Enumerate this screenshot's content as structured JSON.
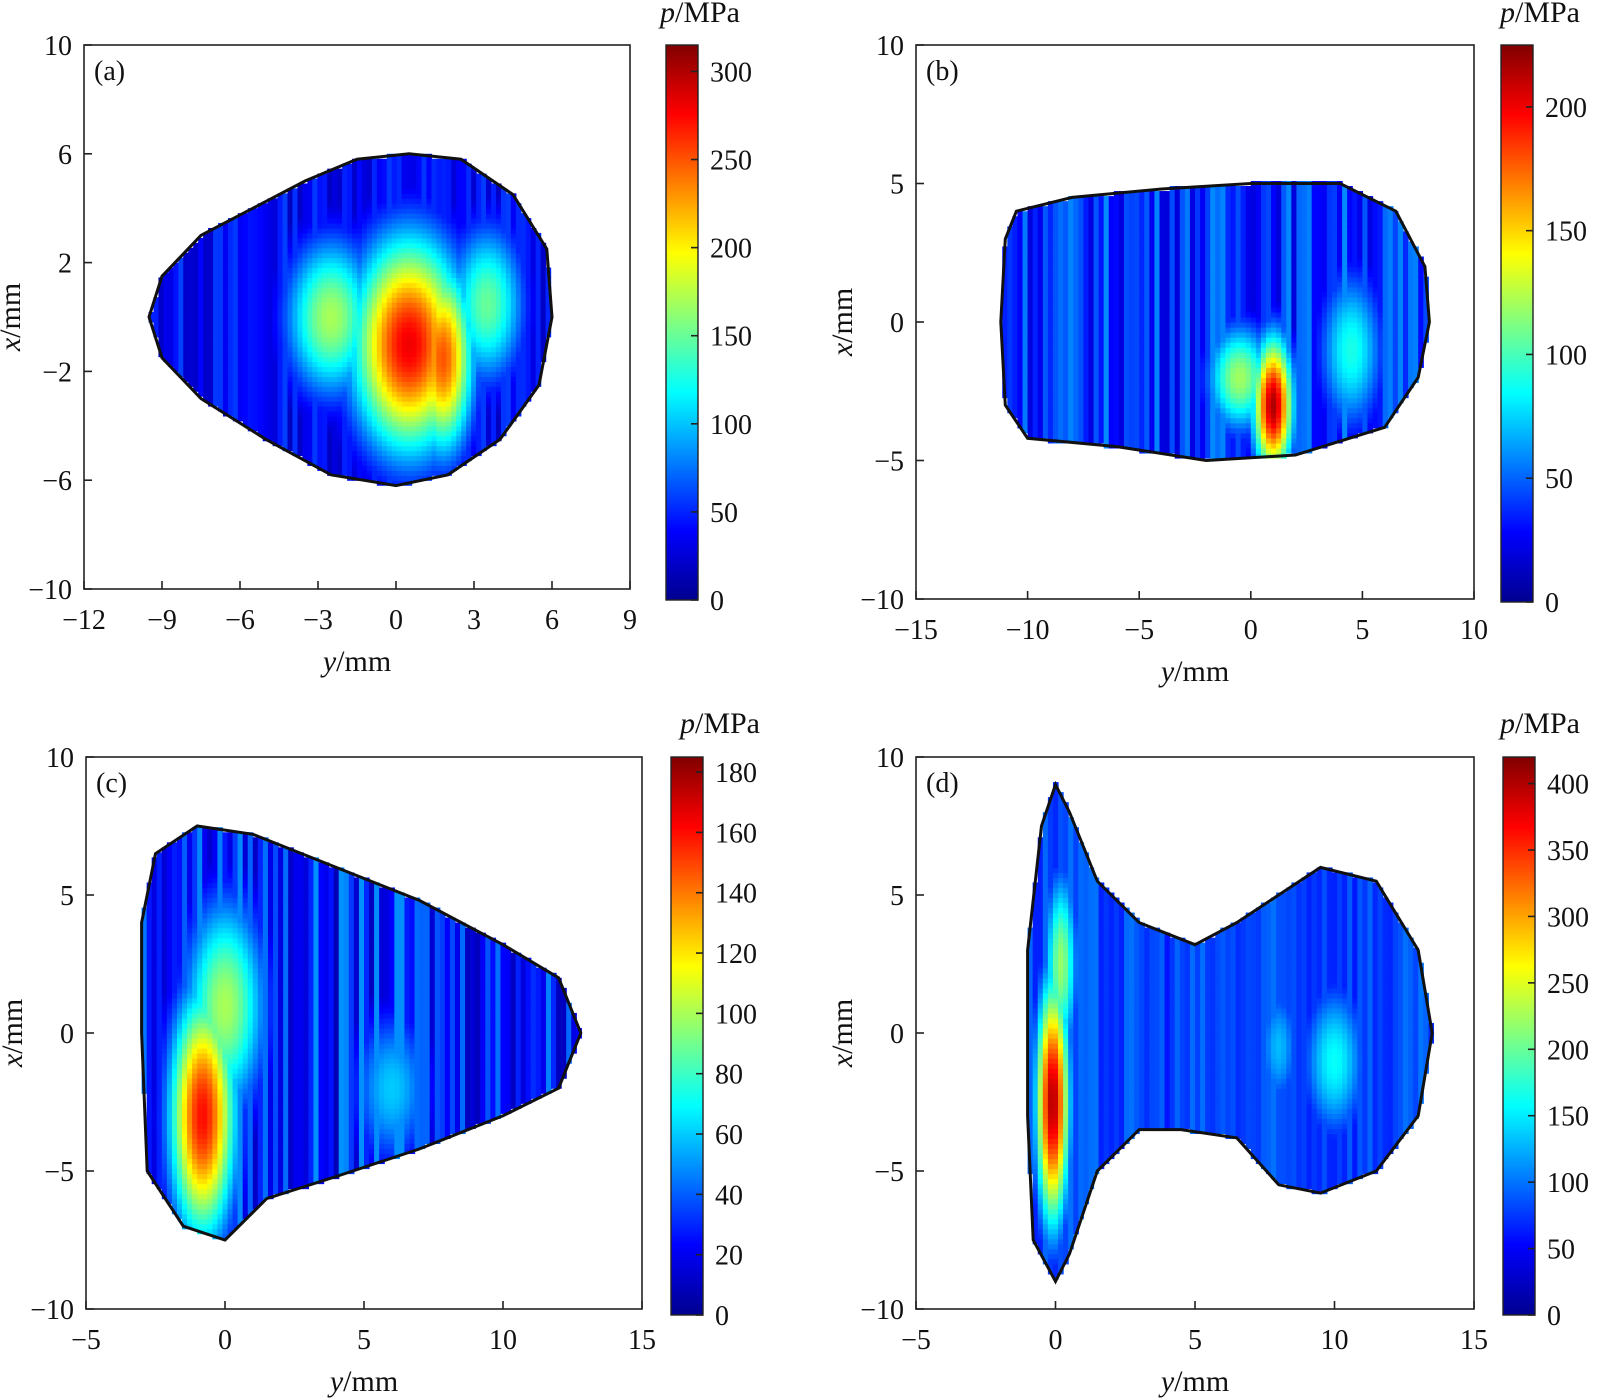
{
  "chart_data": [
    {
      "type": "heatmap",
      "panel_label": "(a)",
      "xlabel": {
        "var": "y",
        "unit": "/mm"
      },
      "ylabel": {
        "var": "x",
        "unit": "/mm"
      },
      "xlim": [
        -12,
        9
      ],
      "ylim": [
        -10,
        10
      ],
      "xticks": [
        -12,
        -9,
        -6,
        -3,
        0,
        3,
        6,
        9
      ],
      "yticks": [
        -10,
        -6,
        -2,
        2,
        6,
        10
      ],
      "colorbar": {
        "title_var": "p",
        "title_unit": "/MPa",
        "min": 0,
        "max": 315,
        "ticks": [
          0,
          50,
          100,
          150,
          200,
          250,
          300
        ]
      },
      "region": {
        "shape": "blob",
        "outline": [
          [
            -9.5,
            0
          ],
          [
            -9.0,
            1.5
          ],
          [
            -7.5,
            3.0
          ],
          [
            -5.5,
            4.0
          ],
          [
            -3.5,
            5.0
          ],
          [
            -1.5,
            5.8
          ],
          [
            0.5,
            6.0
          ],
          [
            2.5,
            5.8
          ],
          [
            4.5,
            4.5
          ],
          [
            5.8,
            2.5
          ],
          [
            6.0,
            0
          ],
          [
            5.5,
            -2.5
          ],
          [
            4.0,
            -4.5
          ],
          [
            2.0,
            -5.8
          ],
          [
            0,
            -6.2
          ],
          [
            -2.5,
            -5.8
          ],
          [
            -5.0,
            -4.5
          ],
          [
            -7.5,
            -3.0
          ],
          [
            -9.0,
            -1.5
          ]
        ]
      },
      "hotspots": [
        {
          "y": 0.5,
          "x": -1.0,
          "sy": 2.2,
          "sx": 4.0,
          "p": 280
        },
        {
          "y": 1.8,
          "x": -1.5,
          "sy": 1.2,
          "sx": 3.5,
          "p": 250
        },
        {
          "y": -2.5,
          "x": 0.0,
          "sy": 1.8,
          "sx": 3.0,
          "p": 170
        },
        {
          "y": 3.5,
          "x": 0.5,
          "sy": 1.5,
          "sx": 3.0,
          "p": 150
        }
      ],
      "base_p": 40
    },
    {
      "type": "heatmap",
      "panel_label": "(b)",
      "xlabel": {
        "var": "y",
        "unit": "/mm"
      },
      "ylabel": {
        "var": "x",
        "unit": "/mm"
      },
      "xlim": [
        -15,
        10
      ],
      "ylim": [
        -10,
        10
      ],
      "xticks": [
        -15,
        -10,
        -5,
        0,
        5,
        10
      ],
      "yticks": [
        -10,
        -5,
        0,
        5,
        10
      ],
      "colorbar": {
        "title_var": "p",
        "title_unit": "/MPa",
        "min": 0,
        "max": 225,
        "ticks": [
          0,
          50,
          100,
          150,
          200
        ]
      },
      "region": {
        "shape": "blob",
        "outline": [
          [
            -11.0,
            3.0
          ],
          [
            -10.5,
            4.0
          ],
          [
            -8.0,
            4.5
          ],
          [
            -4.0,
            4.8
          ],
          [
            0,
            5.0
          ],
          [
            4.0,
            5.0
          ],
          [
            6.5,
            4.0
          ],
          [
            7.8,
            2.0
          ],
          [
            8.0,
            0
          ],
          [
            7.5,
            -2.0
          ],
          [
            6.0,
            -3.8
          ],
          [
            2.0,
            -4.8
          ],
          [
            -2.0,
            -5.0
          ],
          [
            -6.0,
            -4.5
          ],
          [
            -10.0,
            -4.2
          ],
          [
            -11.0,
            -3.0
          ],
          [
            -11.2,
            0
          ]
        ]
      },
      "hotspots": [
        {
          "y": 1.0,
          "x": -3.0,
          "sy": 0.9,
          "sx": 2.5,
          "p": 215
        },
        {
          "y": -0.5,
          "x": -2.0,
          "sy": 1.5,
          "sx": 2.0,
          "p": 120
        },
        {
          "y": 4.5,
          "x": -1.0,
          "sy": 1.5,
          "sx": 3.0,
          "p": 90
        }
      ],
      "base_p": 40
    },
    {
      "type": "heatmap",
      "panel_label": "(c)",
      "xlabel": {
        "var": "y",
        "unit": "/mm"
      },
      "ylabel": {
        "var": "x",
        "unit": "/mm"
      },
      "xlim": [
        -5,
        15
      ],
      "ylim": [
        -10,
        10
      ],
      "xticks": [
        -5,
        0,
        5,
        10,
        15
      ],
      "yticks": [
        -10,
        -5,
        0,
        5,
        10
      ],
      "colorbar": {
        "title_var": "p",
        "title_unit": "/MPa",
        "min": 0,
        "max": 185,
        "ticks": [
          0,
          20,
          40,
          60,
          80,
          100,
          120,
          140,
          160,
          180
        ]
      },
      "region": {
        "shape": "blob",
        "outline": [
          [
            -2.5,
            6.5
          ],
          [
            -1.0,
            7.5
          ],
          [
            1.0,
            7.2
          ],
          [
            4.0,
            6.0
          ],
          [
            7.0,
            4.8
          ],
          [
            10.0,
            3.2
          ],
          [
            12.0,
            2.0
          ],
          [
            12.8,
            0
          ],
          [
            12.0,
            -2.0
          ],
          [
            10.0,
            -3.0
          ],
          [
            7.0,
            -4.2
          ],
          [
            4.0,
            -5.2
          ],
          [
            1.5,
            -6.0
          ],
          [
            0,
            -7.5
          ],
          [
            -1.5,
            -7.0
          ],
          [
            -2.8,
            -5.0
          ],
          [
            -3.0,
            0
          ],
          [
            -3.0,
            4.0
          ]
        ]
      },
      "hotspots": [
        {
          "y": -0.8,
          "x": -3.0,
          "sy": 1.2,
          "sx": 4.5,
          "p": 160
        },
        {
          "y": 0.0,
          "x": 1.0,
          "sy": 1.5,
          "sx": 4.0,
          "p": 100
        },
        {
          "y": 6.0,
          "x": -2.0,
          "sy": 1.5,
          "sx": 3.0,
          "p": 60
        }
      ],
      "base_p": 30
    },
    {
      "type": "heatmap",
      "panel_label": "(d)",
      "xlabel": {
        "var": "y",
        "unit": "/mm"
      },
      "ylabel": {
        "var": "x",
        "unit": "/mm"
      },
      "xlim": [
        -5,
        15
      ],
      "ylim": [
        -10,
        10
      ],
      "xticks": [
        -5,
        0,
        5,
        10,
        15
      ],
      "yticks": [
        -10,
        -5,
        0,
        5,
        10
      ],
      "colorbar": {
        "title_var": "p",
        "title_unit": "/MPa",
        "min": 0,
        "max": 420,
        "ticks": [
          0,
          50,
          100,
          150,
          200,
          250,
          300,
          350,
          400
        ]
      },
      "region": {
        "shape": "blob",
        "outline": [
          [
            -1.0,
            3.0
          ],
          [
            -0.5,
            7.5
          ],
          [
            0,
            9.0
          ],
          [
            0.5,
            8.0
          ],
          [
            1.5,
            5.5
          ],
          [
            3.0,
            4.0
          ],
          [
            5.0,
            3.2
          ],
          [
            6.5,
            4.0
          ],
          [
            9.5,
            6.0
          ],
          [
            11.5,
            5.5
          ],
          [
            13.0,
            3.0
          ],
          [
            13.5,
            0
          ],
          [
            13.0,
            -3.0
          ],
          [
            11.5,
            -5.0
          ],
          [
            9.5,
            -5.8
          ],
          [
            8.0,
            -5.5
          ],
          [
            6.5,
            -3.8
          ],
          [
            4.5,
            -3.5
          ],
          [
            3.0,
            -3.5
          ],
          [
            1.5,
            -5.0
          ],
          [
            0.5,
            -8.0
          ],
          [
            0,
            -9.0
          ],
          [
            -0.8,
            -7.5
          ],
          [
            -1.0,
            -3.0
          ]
        ]
      },
      "hotspots": [
        {
          "y": -0.1,
          "x": -2.5,
          "sy": 0.6,
          "sx": 4.5,
          "p": 400
        },
        {
          "y": 0.2,
          "x": 2.5,
          "sy": 0.6,
          "sx": 3.5,
          "p": 220
        },
        {
          "y": 10.0,
          "x": -1.0,
          "sy": 1.2,
          "sx": 3.0,
          "p": 160
        },
        {
          "y": 8.0,
          "x": -0.5,
          "sy": 0.8,
          "sx": 2.5,
          "p": 130
        }
      ],
      "base_p": 80
    }
  ]
}
